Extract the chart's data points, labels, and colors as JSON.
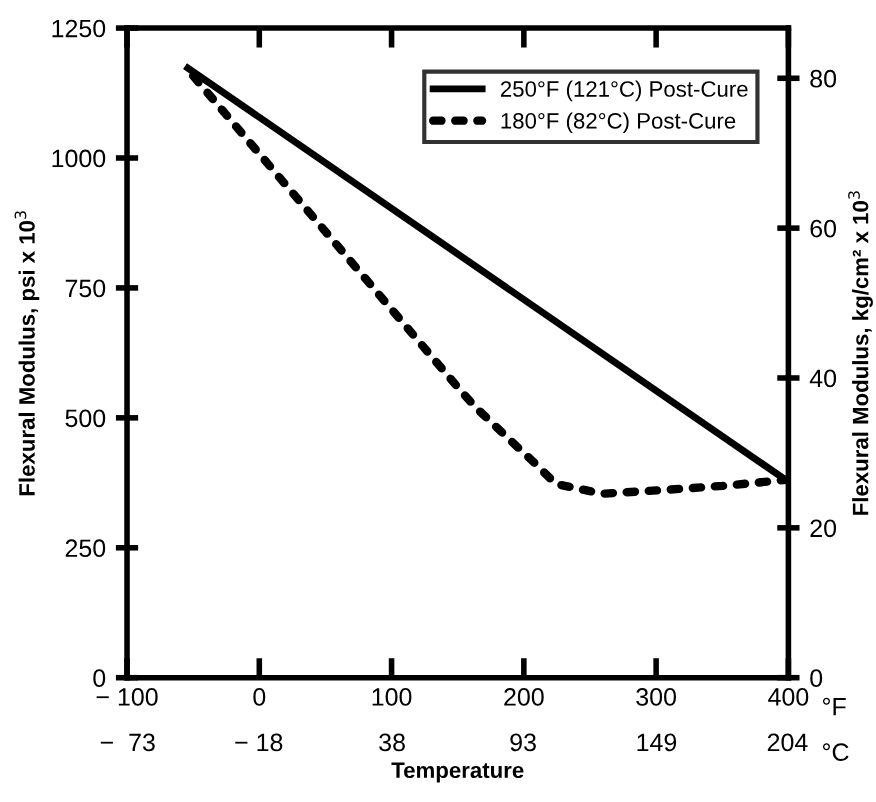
{
  "chart_data": {
    "type": "line",
    "xlabel": "Temperature",
    "ylabel": "Flexural Modulus, psi x 10$^{3}$",
    "y2label": "Flexural Modulus, kg/cm² x 10$^{3}$",
    "xlim": [
      -100,
      400
    ],
    "xticks": [
      {
        "value": -100,
        "label": "− 100"
      },
      0,
      100,
      200,
      300,
      400
    ],
    "x2lim": [
      -73.3,
      204.4
    ],
    "x2ticks": [
      {
        "value": -73,
        "label": "−  73"
      },
      {
        "value": -18,
        "label": "− 18"
      },
      38,
      93,
      149,
      204
    ],
    "ylim": [
      0,
      1250
    ],
    "yticks": [
      0,
      250,
      500,
      750,
      1000,
      1250
    ],
    "y2lim": [
      0,
      86.7
    ],
    "y2ticks": [
      0,
      20,
      40,
      60,
      80
    ],
    "annotations": [
      "°F",
      "°C"
    ],
    "legend": "top right",
    "grid": false,
    "series": [
      {
        "name": "250°F (121°C) Post-Cure",
        "color": "#000000",
        "line_style": "solid",
        "x": [
          -54,
          400
        ],
        "values": [
          1173,
          377
        ]
      },
      {
        "name": "180°F (82°C) Post-Cure",
        "color": "#000000",
        "line_style": "dotted",
        "x": [
          -50,
          153,
          164,
          188,
          209,
          224,
          259,
          305,
          350,
          400
        ],
        "values": [
          1158,
          550,
          519,
          461,
          411,
          373,
          354,
          361,
          369,
          381
        ]
      }
    ]
  }
}
